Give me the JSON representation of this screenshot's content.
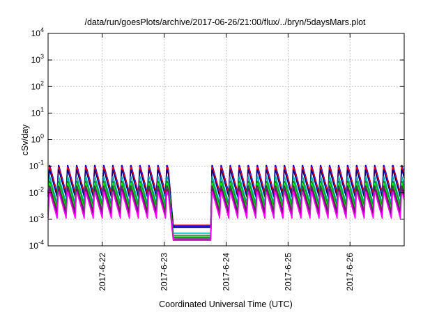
{
  "chart_data": {
    "type": "line",
    "title": "/data/run/goesPlots/archive/2017-06-26/21:00/flux/../bryn/5daysMars.plot",
    "xlabel": "Coordinated Universal Time (UTC)",
    "ylabel": "cSv/day",
    "y_scale": "log",
    "grid": true,
    "xlim": [
      "2017-06-21T03:00",
      "2017-06-26T21:00"
    ],
    "ylim": [
      0.0001,
      10000
    ],
    "x_ticks": [
      {
        "value": "2017-06-22T00:00",
        "label": "2017-6-22"
      },
      {
        "value": "2017-06-23T00:00",
        "label": "2017-6-23"
      },
      {
        "value": "2017-06-24T00:00",
        "label": "2017-6-24"
      },
      {
        "value": "2017-06-25T00:00",
        "label": "2017-6-25"
      },
      {
        "value": "2017-06-26T00:00",
        "label": "2017-6-26"
      }
    ],
    "y_ticks": [
      {
        "value": 0.0001,
        "base": "10",
        "exp": "-4"
      },
      {
        "value": 0.001,
        "base": "10",
        "exp": "-3"
      },
      {
        "value": 0.01,
        "base": "10",
        "exp": "-2"
      },
      {
        "value": 0.1,
        "base": "10",
        "exp": "-1"
      },
      {
        "value": 1,
        "base": "10",
        "exp": "0"
      },
      {
        "value": 10,
        "base": "10",
        "exp": "1"
      },
      {
        "value": 100,
        "base": "10",
        "exp": "2"
      },
      {
        "value": 1000,
        "base": "10",
        "exp": "3"
      },
      {
        "value": 10000,
        "base": "10",
        "exp": "4"
      }
    ],
    "oscillation_period_hours": 3.5,
    "quiet_interval": [
      "2017-06-23T01:30",
      "2017-06-23T18:00"
    ],
    "series": [
      {
        "color": "#0000ff",
        "peak": 0.12,
        "trough": 0.01,
        "quiet": 0.00055
      },
      {
        "color": "#ff0000",
        "peak": 0.1,
        "trough": 0.009,
        "quiet": 0.0006
      },
      {
        "color": "#000080",
        "peak": 0.08,
        "trough": 0.007,
        "quiet": 0.0005
      },
      {
        "color": "#00aaaa",
        "peak": 0.045,
        "trough": 0.004,
        "quiet": 0.0003
      },
      {
        "color": "#008000",
        "peak": 0.03,
        "trough": 0.003,
        "quiet": 0.00025
      },
      {
        "color": "#00ff00",
        "peak": 0.025,
        "trough": 0.0025,
        "quiet": 0.00022
      },
      {
        "color": "#404040",
        "peak": 0.02,
        "trough": 0.002,
        "quiet": 0.0002
      },
      {
        "color": "#800080",
        "peak": 0.015,
        "trough": 0.0015,
        "quiet": 0.00018
      },
      {
        "color": "#ff00ff",
        "peak": 0.012,
        "trough": 0.0011,
        "quiet": 0.00016
      }
    ]
  }
}
